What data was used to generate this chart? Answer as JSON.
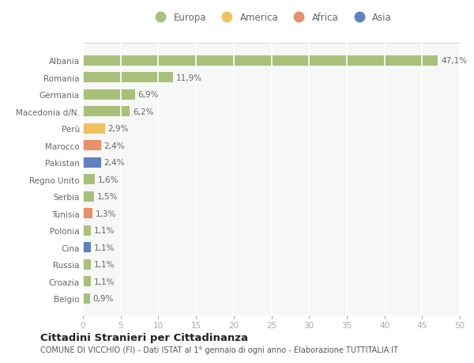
{
  "countries": [
    "Albania",
    "Romania",
    "Germania",
    "Macedonia d/N.",
    "Perù",
    "Marocco",
    "Pakistan",
    "Regno Unito",
    "Serbia",
    "Tunisia",
    "Polonia",
    "Cina",
    "Russia",
    "Croazia",
    "Belgio"
  ],
  "values": [
    47.1,
    11.9,
    6.9,
    6.2,
    2.9,
    2.4,
    2.4,
    1.6,
    1.5,
    1.3,
    1.1,
    1.1,
    1.1,
    1.1,
    0.9
  ],
  "labels": [
    "47,1%",
    "11,9%",
    "6,9%",
    "6,2%",
    "2,9%",
    "2,4%",
    "2,4%",
    "1,6%",
    "1,5%",
    "1,3%",
    "1,1%",
    "1,1%",
    "1,1%",
    "1,1%",
    "0,9%"
  ],
  "continents": [
    "Europa",
    "Europa",
    "Europa",
    "Europa",
    "America",
    "Africa",
    "Asia",
    "Europa",
    "Europa",
    "Africa",
    "Europa",
    "Asia",
    "Europa",
    "Europa",
    "Europa"
  ],
  "colors": {
    "Europa": "#a8c07a",
    "America": "#f0c060",
    "Africa": "#e8906a",
    "Asia": "#6080c0"
  },
  "legend_order": [
    "Europa",
    "America",
    "Africa",
    "Asia"
  ],
  "legend_colors": [
    "#a8c07a",
    "#f0c060",
    "#e8906a",
    "#6080c0"
  ],
  "xlim": [
    0,
    50
  ],
  "xticks": [
    0,
    5,
    10,
    15,
    20,
    25,
    30,
    35,
    40,
    45,
    50
  ],
  "title": "Cittadini Stranieri per Cittadinanza",
  "subtitle": "COMUNE DI VICCHIO (FI) - Dati ISTAT al 1° gennaio di ogni anno - Elaborazione TUTTITALIA.IT",
  "background_color": "#ffffff",
  "plot_bg_color": "#f7f7f5",
  "grid_color": "#ffffff",
  "bar_height": 0.6,
  "label_color": "#666666",
  "ytick_color": "#666666",
  "xtick_color": "#aaaaaa"
}
